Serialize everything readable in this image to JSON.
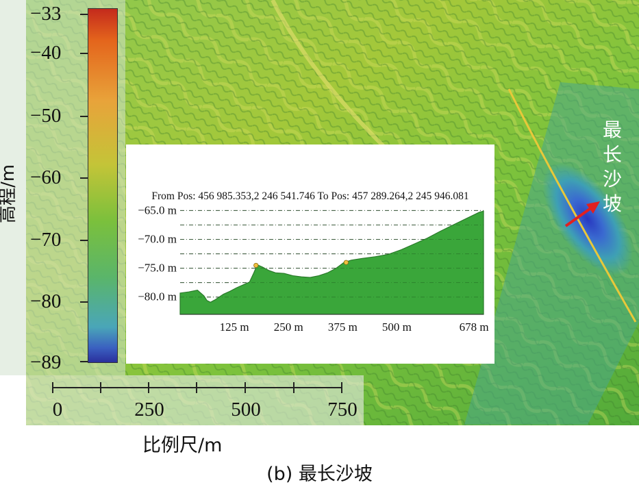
{
  "legend": {
    "axis_label": "高程/m",
    "ticks": [
      "−33",
      "−40",
      "−50",
      "−60",
      "−70",
      "−80",
      "−89"
    ],
    "color_stops": [
      "#c42a1c",
      "#e4651c",
      "#e8a33a",
      "#c4c438",
      "#7bc03c",
      "#5ab56a",
      "#4aa6b8",
      "#2a2f9c"
    ]
  },
  "scale_bar": {
    "title": "比例尺/m",
    "labels": [
      "0",
      "250",
      "500",
      "750"
    ]
  },
  "annotation": {
    "label": "最长沙坡",
    "arrow_color": "#e02020"
  },
  "caption": "(b) 最长沙坡",
  "chart_data": {
    "type": "area",
    "title": "From Pos: 456 985.353,2 246 541.746 To Pos: 457 289.264,2 245 946.081",
    "xlabel": "",
    "ylabel": "",
    "y_tick_labels": [
      "−65.0 m",
      "−70.0 m",
      "−75.0 m",
      "−80.0 m"
    ],
    "y_ticks": [
      -65,
      -70,
      -75,
      -80
    ],
    "x_tick_labels": [
      "125 m",
      "250 m",
      "375 m",
      "500 m",
      "678 m"
    ],
    "x_ticks": [
      125,
      250,
      375,
      500,
      678
    ],
    "xlim": [
      0,
      700
    ],
    "ylim": [
      -83,
      -64
    ],
    "fill_color": "#3aa63a",
    "grid": "dash-dot horizontal",
    "series": [
      {
        "x": [
          0,
          20,
          40,
          55,
          62,
          70,
          80,
          90,
          100,
          115,
          130,
          145,
          160,
          170,
          178,
          190,
          205,
          220,
          240,
          260,
          280,
          300,
          320,
          340,
          360,
          378,
          395,
          420,
          450,
          480,
          510,
          540,
          570,
          600,
          630,
          660,
          690,
          700
        ],
        "y": [
          -79.3,
          -79.1,
          -78.8,
          -79.8,
          -80.6,
          -80.9,
          -80.5,
          -80.0,
          -79.5,
          -79.0,
          -78.4,
          -77.9,
          -77.4,
          -75.8,
          -74.4,
          -74.8,
          -75.4,
          -75.8,
          -75.9,
          -76.3,
          -76.5,
          -76.6,
          -76.3,
          -75.8,
          -75.0,
          -74.0,
          -73.6,
          -73.3,
          -73.0,
          -72.6,
          -71.8,
          -70.8,
          -69.8,
          -68.6,
          -67.5,
          -66.4,
          -65.3,
          -65.1
        ]
      }
    ],
    "markers": [
      {
        "x": 175,
        "y": -74.5
      },
      {
        "x": 383,
        "y": -74.0
      }
    ],
    "marker_color": "#f0c040"
  }
}
